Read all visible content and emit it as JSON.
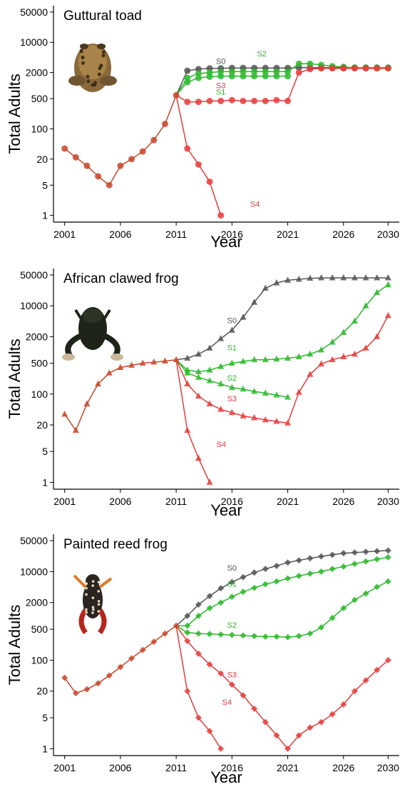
{
  "colors": {
    "baseline": "#555555",
    "historical": "#c8472b",
    "s0": "#555555",
    "s1": "#2db82d",
    "s2": "#2db82d",
    "s3": "#e83c3c",
    "s4": "#e83c3c"
  },
  "chart_data": [
    {
      "type": "line",
      "title": "Guttural toad",
      "xlabel": "Year",
      "ylabel": "Total Adults",
      "y_scale": "log",
      "ylim": [
        0.7,
        70000
      ],
      "xlim": [
        2000,
        2031
      ],
      "xticks": [
        "2001",
        "2006",
        "2011",
        "2016",
        "2021",
        "2026",
        "2030"
      ],
      "yticks": [
        "1",
        "5",
        "20",
        "100",
        "500",
        "2000",
        "10000",
        "50000"
      ],
      "marker": "circle",
      "image": "guttural-toad-photo",
      "historical": {
        "x": [
          2001,
          2002,
          2003,
          2004,
          2005,
          2006,
          2007,
          2008,
          2009,
          2010,
          2011
        ],
        "y": [
          35,
          22,
          14,
          8,
          5,
          14,
          20,
          30,
          55,
          130,
          600
        ]
      },
      "series": [
        {
          "name": "S0",
          "label_at": 2015,
          "x": [
            2011,
            2012,
            2013,
            2014,
            2015,
            2016,
            2017,
            2018,
            2019,
            2020,
            2021,
            2022,
            2023,
            2024,
            2025,
            2026,
            2027,
            2028,
            2029,
            2030
          ],
          "y": [
            600,
            2200,
            2400,
            2500,
            2500,
            2550,
            2550,
            2550,
            2550,
            2550,
            2550,
            2600,
            2600,
            2600,
            2600,
            2600,
            2600,
            2600,
            2600,
            2600
          ]
        },
        {
          "name": "S1",
          "label_at": 2015,
          "x": [
            2011,
            2012,
            2013,
            2014,
            2015,
            2016,
            2017,
            2018,
            2019,
            2020,
            2021
          ],
          "y": [
            600,
            1200,
            1500,
            1600,
            1650,
            1650,
            1650,
            1650,
            1650,
            1650,
            1650
          ]
        },
        {
          "name": "S2",
          "label_at": 2022,
          "x": [
            2011,
            2012,
            2013,
            2014,
            2015,
            2016,
            2017,
            2018,
            2019,
            2020,
            2021,
            2022,
            2023,
            2024,
            2025,
            2026,
            2027,
            2028,
            2029,
            2030
          ],
          "y": [
            600,
            1500,
            1900,
            2000,
            2100,
            2100,
            2100,
            2100,
            2100,
            2100,
            2100,
            3200,
            3200,
            3000,
            2800,
            2700,
            2600,
            2600,
            2600,
            2600
          ]
        },
        {
          "name": "S3",
          "label_at": 2015,
          "x": [
            2011,
            2012,
            2013,
            2014,
            2015,
            2016,
            2017,
            2018,
            2019,
            2020,
            2021,
            2022,
            2023,
            2024,
            2025,
            2026,
            2027,
            2028,
            2029,
            2030
          ],
          "y": [
            600,
            420,
            420,
            440,
            440,
            460,
            440,
            440,
            440,
            460,
            440,
            2000,
            2400,
            2500,
            2500,
            2500,
            2500,
            2500,
            2500,
            2500
          ]
        },
        {
          "name": "S4",
          "label_at": 2015,
          "x": [
            2011,
            2012,
            2013,
            2014,
            2015
          ],
          "y": [
            600,
            35,
            15,
            6,
            1
          ]
        }
      ]
    },
    {
      "type": "line",
      "title": "African clawed frog",
      "xlabel": "Year",
      "ylabel": "Total Adults",
      "y_scale": "log",
      "ylim": [
        0.7,
        70000
      ],
      "xlim": [
        2000,
        2031
      ],
      "xticks": [
        "2001",
        "2006",
        "2011",
        "2016",
        "2021",
        "2026",
        "2030"
      ],
      "yticks": [
        "1",
        "5",
        "20",
        "100",
        "500",
        "2000",
        "10000",
        "50000"
      ],
      "marker": "triangle",
      "image": "african-clawed-frog-photo",
      "historical": {
        "x": [
          2001,
          2002,
          2003,
          2004,
          2005,
          2006,
          2007,
          2008,
          2009,
          2010,
          2011
        ],
        "y": [
          35,
          15,
          60,
          170,
          300,
          400,
          450,
          500,
          530,
          560,
          600
        ]
      },
      "series": [
        {
          "name": "S0",
          "label_at": 2016,
          "x": [
            2011,
            2012,
            2013,
            2014,
            2015,
            2016,
            2017,
            2018,
            2019,
            2020,
            2021,
            2022,
            2023,
            2024,
            2025,
            2026,
            2027,
            2028,
            2029,
            2030
          ],
          "y": [
            600,
            650,
            800,
            1100,
            1800,
            2800,
            5500,
            12000,
            25000,
            33000,
            38000,
            40000,
            42000,
            43000,
            43000,
            43000,
            43000,
            43000,
            43000,
            43000
          ]
        },
        {
          "name": "S1",
          "label_at": 2016,
          "x": [
            2011,
            2012,
            2013,
            2014,
            2015,
            2016,
            2017,
            2018,
            2019,
            2020,
            2021,
            2022,
            2023,
            2024,
            2025,
            2026,
            2027,
            2028,
            2029,
            2030
          ],
          "y": [
            600,
            350,
            320,
            350,
            420,
            500,
            550,
            600,
            600,
            620,
            650,
            700,
            800,
            1000,
            1500,
            2500,
            4500,
            10000,
            20000,
            30000
          ]
        },
        {
          "name": "S2",
          "label_at": 2016,
          "x": [
            2011,
            2012,
            2013,
            2014,
            2015,
            2016,
            2017,
            2018,
            2019,
            2020,
            2021
          ],
          "y": [
            600,
            300,
            240,
            200,
            170,
            140,
            130,
            115,
            105,
            95,
            85
          ]
        },
        {
          "name": "S3",
          "label_at": 2016,
          "x": [
            2011,
            2012,
            2013,
            2014,
            2015,
            2016,
            2017,
            2018,
            2019,
            2020,
            2021,
            2022,
            2023,
            2024,
            2025,
            2026,
            2027,
            2028,
            2029,
            2030
          ],
          "y": [
            600,
            170,
            90,
            60,
            45,
            38,
            32,
            29,
            26,
            24,
            22,
            110,
            280,
            480,
            600,
            700,
            800,
            1100,
            2000,
            6000
          ]
        },
        {
          "name": "S4",
          "label_at": 2013,
          "x": [
            2011,
            2012,
            2013,
            2014
          ],
          "y": [
            600,
            15,
            3.5,
            1
          ]
        }
      ]
    },
    {
      "type": "line",
      "title": "Painted reed frog",
      "xlabel": "Year",
      "ylabel": "Total Adults",
      "y_scale": "log",
      "ylim": [
        0.7,
        70000
      ],
      "xlim": [
        2000,
        2031
      ],
      "xticks": [
        "2001",
        "2006",
        "2011",
        "2016",
        "2021",
        "2026",
        "2030"
      ],
      "yticks": [
        "1",
        "5",
        "20",
        "100",
        "500",
        "2000",
        "10000",
        "50000"
      ],
      "marker": "diamond",
      "image": "painted-reed-frog-photo",
      "historical": {
        "x": [
          2001,
          2002,
          2003,
          2004,
          2005,
          2006,
          2007,
          2008,
          2009,
          2010,
          2011
        ],
        "y": [
          40,
          18,
          22,
          30,
          45,
          70,
          110,
          170,
          260,
          400,
          600
        ]
      },
      "series": [
        {
          "name": "S0",
          "label_at": 2016,
          "x": [
            2011,
            2012,
            2013,
            2014,
            2015,
            2016,
            2017,
            2018,
            2019,
            2020,
            2021,
            2022,
            2023,
            2024,
            2025,
            2026,
            2027,
            2028,
            2029,
            2030
          ],
          "y": [
            600,
            1000,
            1800,
            2800,
            4200,
            5800,
            7500,
            9500,
            11500,
            13500,
            16000,
            18000,
            20000,
            22000,
            24000,
            26000,
            27000,
            28000,
            29000,
            30000
          ]
        },
        {
          "name": "S1",
          "label_at": 2016,
          "x": [
            2011,
            2012,
            2013,
            2014,
            2015,
            2016,
            2017,
            2018,
            2019,
            2020,
            2021,
            2022,
            2023,
            2024,
            2025,
            2026,
            2027,
            2028,
            2029,
            2030
          ],
          "y": [
            600,
            600,
            1000,
            1500,
            2000,
            2700,
            3500,
            4300,
            5200,
            6000,
            7000,
            8000,
            9000,
            10000,
            11500,
            13000,
            15000,
            17000,
            19000,
            21000
          ]
        },
        {
          "name": "S2",
          "label_at": 2016,
          "x": [
            2011,
            2012,
            2013,
            2014,
            2015,
            2016,
            2017,
            2018,
            2019,
            2020,
            2021,
            2022,
            2023,
            2024,
            2025,
            2026,
            2027,
            2028,
            2029,
            2030
          ],
          "y": [
            600,
            420,
            400,
            390,
            380,
            370,
            360,
            350,
            340,
            340,
            330,
            350,
            400,
            550,
            900,
            1500,
            2300,
            3200,
            4500,
            6000
          ]
        },
        {
          "name": "S3",
          "label_at": 2016,
          "x": [
            2011,
            2012,
            2013,
            2014,
            2015,
            2016,
            2017,
            2018,
            2019,
            2020,
            2021,
            2022,
            2023,
            2024,
            2025,
            2026,
            2027,
            2028,
            2029,
            2030
          ],
          "y": [
            600,
            270,
            140,
            80,
            50,
            28,
            16,
            8,
            4,
            2,
            1,
            2,
            3,
            4,
            6,
            10,
            20,
            35,
            60,
            100
          ]
        },
        {
          "name": "S4",
          "label_at": 2013,
          "x": [
            2011,
            2012,
            2013,
            2014,
            2015
          ],
          "y": [
            600,
            20,
            5,
            2.5,
            1
          ]
        }
      ]
    }
  ]
}
